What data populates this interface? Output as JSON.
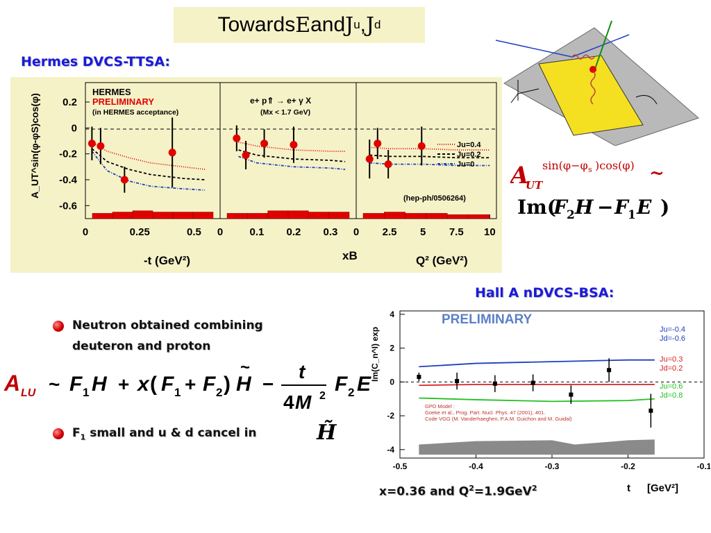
{
  "slide": {
    "title_pre": "Towards ",
    "title_E": "E",
    "title_and": " and ",
    "title_Ju": "J",
    "title_Ju_sub": "u",
    "title_sep": ", ",
    "title_Jd": "J",
    "title_Jd_sub": "d"
  },
  "hermes": {
    "heading": "Hermes DVCS-TTSA:",
    "logo": "HERMES",
    "preliminary": "PRELIMINARY",
    "acceptance": "(in HERMES acceptance)",
    "reaction": "e+ p⇑ → e+ γ X",
    "mx_cut": "(Mx < 1.7 GeV)",
    "ref": "(hep-ph/0506264)",
    "ylabel": "A_UT^sin(φ-φS)cos(φ)",
    "legend": [
      "Ju=0.4",
      "Ju=0.2",
      "Ju=0"
    ]
  },
  "halla": {
    "heading": "Hall A nDVCS-BSA:",
    "preliminary": "PRELIMINARY",
    "ylabel": "Im(C_n^I) exp",
    "gpd_model": [
      "GPD Model :",
      "Goeke et al., Prog. Part. Nucl. Phys. 47 (2001), 401.",
      "Code VGG (M. Vanderhaeghen, P.A.M. Guichon and M. Guidal)"
    ],
    "legend": [
      {
        "ju": "Ju=-0.4",
        "jd": "Jd=-0.6",
        "color": "#1b3fbf"
      },
      {
        "ju": "Ju=0.3",
        "jd": "Jd=0.2",
        "color": "#d62020"
      },
      {
        "ju": "Ju=0.6",
        "jd": "Jd=0.8",
        "color": "#22c022"
      }
    ],
    "caption_pre": "x=0.36 and Q",
    "caption_sup": "2",
    "caption_post": "=1.9GeV",
    "caption_sup2": "2",
    "xunit_t": "t",
    "xunit": "[GeV²]"
  },
  "formulas": {
    "asym": "A_UT^sin(φ-φs)cos(φ) ~ Im(F2H − F1E)",
    "alu": "A_LU ~ F1H + x(F1+F2)H̃ − t/(4M²) F2E"
  },
  "bullets": {
    "b1_line1": "Neutron obtained combining",
    "b1_line2": "deuteron and proton",
    "b2_pre": "F",
    "b2_sub": "1",
    "b2_post": " small and u & d cancel in",
    "b2_sym": "H̃"
  },
  "colors": {
    "heading": "#1a1adb",
    "panel_bg": "#f6f2c8",
    "data_red": "#e00000"
  },
  "chart_data": [
    {
      "type": "scatter",
      "name": "hermes-vs-t",
      "xlabel": "-t (GeV²)",
      "xlim": [
        0,
        0.62
      ],
      "ylim": [
        -0.7,
        0.35
      ],
      "xticks": [
        "0",
        "0.25",
        "0.5"
      ],
      "xtick_values": [
        0,
        0.25,
        0.5
      ],
      "yticks": [
        "0.2",
        "0",
        "-0.2",
        "-0.4",
        "-0.6"
      ],
      "ytick_values": [
        0.2,
        0,
        -0.2,
        -0.4,
        -0.6
      ],
      "points": [
        {
          "x": 0.03,
          "y": -0.12,
          "err": 0.13
        },
        {
          "x": 0.07,
          "y": -0.14,
          "err": 0.14
        },
        {
          "x": 0.18,
          "y": -0.4,
          "err": 0.1
        },
        {
          "x": 0.4,
          "y": -0.19,
          "err": 0.27
        }
      ],
      "curves": [
        {
          "name": "Ju=0.4",
          "x": [
            0.03,
            0.1,
            0.2,
            0.3,
            0.45,
            0.55
          ],
          "y": [
            -0.11,
            -0.18,
            -0.23,
            -0.27,
            -0.3,
            -0.32
          ]
        },
        {
          "name": "Ju=0.2",
          "x": [
            0.03,
            0.1,
            0.2,
            0.3,
            0.45,
            0.55
          ],
          "y": [
            -0.16,
            -0.26,
            -0.32,
            -0.36,
            -0.39,
            -0.4
          ]
        },
        {
          "name": "Ju=0",
          "x": [
            0.03,
            0.1,
            0.2,
            0.3,
            0.45,
            0.55
          ],
          "y": [
            -0.18,
            -0.33,
            -0.41,
            -0.45,
            -0.47,
            -0.48
          ]
        }
      ],
      "sys_band": [
        0.03,
        0.04,
        0.05,
        0.04,
        0.04,
        0.04
      ]
    },
    {
      "type": "scatter",
      "name": "hermes-vs-xB",
      "xlabel": "xB",
      "xlim": [
        0,
        0.37
      ],
      "ylim": [
        -0.7,
        0.35
      ],
      "xticks": [
        "0",
        "0.1",
        "0.2",
        "0.3"
      ],
      "xtick_values": [
        0,
        0.1,
        0.2,
        0.3
      ],
      "points": [
        {
          "x": 0.045,
          "y": -0.08,
          "err": 0.1
        },
        {
          "x": 0.07,
          "y": -0.21,
          "err": 0.11
        },
        {
          "x": 0.12,
          "y": -0.12,
          "err": 0.11
        },
        {
          "x": 0.2,
          "y": -0.13,
          "err": 0.14
        }
      ],
      "curves": [
        {
          "name": "Ju=0.4",
          "x": [
            0.05,
            0.1,
            0.2,
            0.3,
            0.34
          ],
          "y": [
            -0.11,
            -0.14,
            -0.17,
            -0.18,
            -0.18
          ]
        },
        {
          "name": "Ju=0.2",
          "x": [
            0.05,
            0.1,
            0.2,
            0.3,
            0.34
          ],
          "y": [
            -0.17,
            -0.21,
            -0.24,
            -0.25,
            -0.26
          ]
        },
        {
          "name": "Ju=0",
          "x": [
            0.05,
            0.1,
            0.2,
            0.3,
            0.34
          ],
          "y": [
            -0.22,
            -0.27,
            -0.3,
            -0.31,
            -0.32
          ]
        }
      ],
      "sys_band": [
        0.03,
        0.03,
        0.05,
        0.05,
        0.04,
        0.04
      ]
    },
    {
      "type": "scatter",
      "name": "hermes-vs-Q2",
      "xlabel": "Q² (GeV²)",
      "xlim": [
        0,
        10.5
      ],
      "ylim": [
        -0.7,
        0.35
      ],
      "xticks": [
        "0",
        "2.5",
        "5",
        "7.5",
        "10"
      ],
      "xtick_values": [
        0,
        2.5,
        5,
        7.5,
        10
      ],
      "points": [
        {
          "x": 1.0,
          "y": -0.24,
          "err": 0.15
        },
        {
          "x": 1.6,
          "y": -0.12,
          "err": 0.12
        },
        {
          "x": 2.4,
          "y": -0.28,
          "err": 0.11
        },
        {
          "x": 4.9,
          "y": -0.14,
          "err": 0.15
        }
      ],
      "curves": [
        {
          "name": "Ju=0.4",
          "x": [
            1.0,
            2.5,
            5,
            7.5,
            10
          ],
          "y": [
            -0.15,
            -0.16,
            -0.16,
            -0.17,
            -0.17
          ]
        },
        {
          "name": "Ju=0.2",
          "x": [
            1.0,
            2.5,
            5,
            7.5,
            10
          ],
          "y": [
            -0.21,
            -0.22,
            -0.22,
            -0.23,
            -0.23
          ]
        },
        {
          "name": "Ju=0",
          "x": [
            1.0,
            2.5,
            5,
            7.5,
            10
          ],
          "y": [
            -0.27,
            -0.28,
            -0.28,
            -0.29,
            -0.29
          ]
        }
      ],
      "sys_band": [
        0.03,
        0.04,
        0.03,
        0.03,
        0.02,
        0.02
      ]
    },
    {
      "type": "scatter",
      "name": "halla-nDVCS",
      "xlabel": "t [GeV²]",
      "ylabel": "Im(C_n^I) exp",
      "xlim": [
        -0.5,
        -0.1
      ],
      "ylim": [
        -4.5,
        4.2
      ],
      "xticks": [
        "-0.5",
        "-0.4",
        "-0.3",
        "-0.2",
        "-0.1"
      ],
      "xtick_values": [
        -0.5,
        -0.4,
        -0.3,
        -0.2,
        -0.1
      ],
      "yticks": [
        "4",
        "2",
        "0",
        "-2",
        "-4"
      ],
      "ytick_values": [
        4,
        2,
        0,
        -2,
        -4
      ],
      "points": [
        {
          "x": -0.475,
          "y": 0.3,
          "err": 0.25
        },
        {
          "x": -0.425,
          "y": 0.05,
          "err": 0.5
        },
        {
          "x": -0.375,
          "y": -0.1,
          "err": 0.5
        },
        {
          "x": -0.325,
          "y": -0.05,
          "err": 0.5
        },
        {
          "x": -0.275,
          "y": -0.75,
          "err": 0.55
        },
        {
          "x": -0.225,
          "y": 0.7,
          "err": 0.7
        },
        {
          "x": -0.17,
          "y": -1.7,
          "err": 1.0
        }
      ],
      "curves": [
        {
          "name": "Ju=-0.4 Jd=-0.6",
          "x": [
            -0.475,
            -0.4,
            -0.3,
            -0.2,
            -0.165
          ],
          "y": [
            0.9,
            1.1,
            1.2,
            1.3,
            1.3
          ]
        },
        {
          "name": "Ju=0.3 Jd=0.2",
          "x": [
            -0.475,
            -0.4,
            -0.3,
            -0.2,
            -0.165
          ],
          "y": [
            -0.2,
            -0.15,
            -0.15,
            -0.15,
            -0.15
          ]
        },
        {
          "name": "Ju=0.6 Jd=0.8",
          "x": [
            -0.475,
            -0.4,
            -0.3,
            -0.2,
            -0.165
          ],
          "y": [
            -0.95,
            -1.05,
            -1.15,
            -1.1,
            -1.0
          ]
        }
      ],
      "band": {
        "x": [
          -0.475,
          -0.4,
          -0.3,
          -0.27,
          -0.2,
          -0.165
        ],
        "y": [
          -3.7,
          -3.5,
          -3.45,
          -3.7,
          -3.45,
          -3.4
        ]
      }
    }
  ]
}
